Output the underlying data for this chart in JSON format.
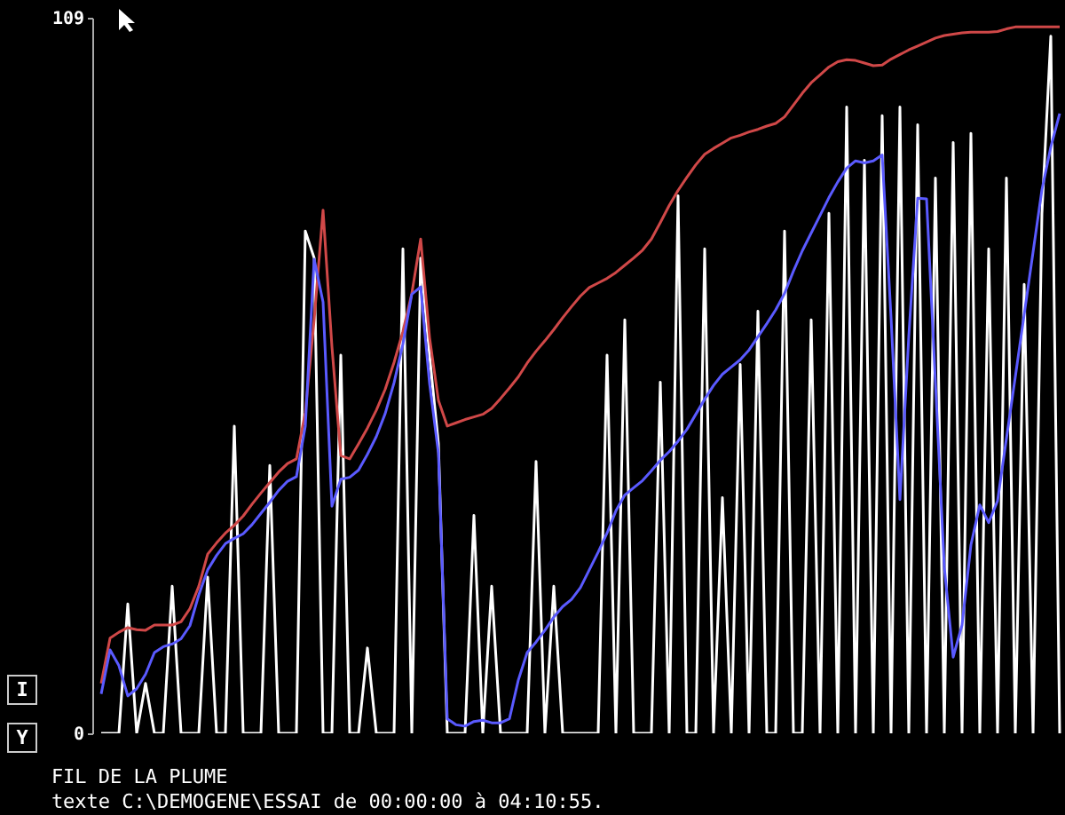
{
  "chart_data": {
    "type": "line",
    "title": "FIL DE LA PLUME",
    "subtitle": "texte C:\\DEMOGENE\\ESSAI de 00:00:00 à 04:10:55.",
    "annotations": [
      "I",
      "Y"
    ],
    "categories": [
      null,
      null,
      null,
      null,
      null,
      null,
      null,
      null,
      null,
      null,
      null,
      null,
      null,
      null,
      null,
      null,
      null,
      null,
      null,
      null,
      null,
      null,
      null,
      null,
      null,
      null,
      null,
      null,
      null,
      null,
      null,
      null,
      null,
      null,
      null,
      null,
      null,
      null,
      null,
      null,
      null,
      null,
      null,
      null,
      null,
      null,
      null,
      null,
      null,
      null,
      null,
      null,
      null,
      null,
      null,
      null,
      null,
      null,
      null,
      null,
      null,
      null,
      null,
      null,
      null,
      null,
      null,
      null,
      null,
      null,
      null,
      null,
      null,
      null,
      null,
      null,
      null,
      null,
      null,
      null,
      null,
      null,
      null,
      null,
      null,
      null,
      null,
      null,
      null,
      null,
      null,
      null,
      null,
      null,
      null,
      null,
      null,
      null,
      null,
      null,
      null,
      null,
      null,
      null,
      null,
      null,
      null,
      null,
      null
    ],
    "ylim": [
      0,
      109
    ],
    "yticks": [
      0,
      109
    ],
    "tick_labels": "y",
    "series": [
      {
        "color": "#ffffff",
        "values": [
          0,
          0,
          0,
          19.7,
          0,
          7.6,
          0,
          0,
          22.4,
          0,
          0,
          0,
          23.8,
          0,
          0,
          46.8,
          0,
          0,
          0,
          40.8,
          0,
          0,
          0,
          76.5,
          72.4,
          0,
          0,
          57.6,
          0,
          0,
          13.0,
          0,
          0,
          0,
          73.8,
          0,
          72.4,
          57.6,
          44.1,
          0,
          0,
          0,
          33.2,
          0,
          22.4,
          0,
          0,
          0,
          0,
          41.4,
          0,
          22.4,
          0,
          0,
          0,
          0,
          0,
          57.6,
          0,
          63.0,
          0,
          0,
          0,
          53.5,
          0,
          81.9,
          0,
          0,
          73.8,
          0,
          35.9,
          0,
          56.2,
          0,
          64.3,
          0,
          0,
          76.5,
          0,
          0,
          63.0,
          0,
          79.2,
          0,
          95.4,
          0,
          87.3,
          0,
          94.1,
          0,
          95.4,
          0,
          92.7,
          0,
          84.6,
          0,
          90.0,
          0,
          91.4,
          0,
          73.8,
          0,
          84.6,
          0,
          68.4,
          0,
          79.2,
          106.2,
          0
        ]
      },
      {
        "color": "#d04848",
        "values": [
          7.6,
          14.5,
          15.4,
          16.1,
          15.8,
          15.7,
          16.5,
          16.5,
          16.5,
          17.0,
          19.0,
          22.4,
          27.3,
          29.0,
          30.5,
          31.7,
          33.1,
          34.9,
          36.6,
          38.2,
          39.8,
          41.1,
          41.8,
          48.9,
          63.0,
          79.7,
          58.9,
          42.3,
          41.8,
          44.1,
          46.5,
          49.2,
          52.4,
          56.5,
          61.2,
          67.0,
          75.3,
          60.3,
          50.7,
          46.8,
          47.3,
          47.8,
          48.2,
          48.6,
          49.5,
          51.0,
          52.6,
          54.3,
          56.4,
          58.2,
          59.8,
          61.5,
          63.3,
          65.0,
          66.6,
          67.9,
          68.6,
          69.3,
          70.2,
          71.3,
          72.4,
          73.6,
          75.3,
          77.8,
          80.4,
          82.7,
          84.7,
          86.6,
          88.2,
          89.1,
          89.9,
          90.7,
          91.1,
          91.6,
          92.0,
          92.5,
          92.9,
          93.9,
          95.7,
          97.5,
          99.1,
          100.3,
          101.5,
          102.3,
          102.6,
          102.5,
          102.1,
          101.7,
          101.8,
          102.7,
          103.4,
          104.1,
          104.7,
          105.3,
          105.9,
          106.3,
          106.5,
          106.7,
          106.8,
          106.8,
          106.8,
          106.9,
          107.3,
          107.6,
          107.6,
          107.6,
          107.6,
          107.6,
          107.6
        ]
      },
      {
        "color": "#5a5aff",
        "values": [
          6.0,
          12.7,
          10.3,
          5.7,
          6.8,
          9.0,
          12.3,
          13.2,
          13.6,
          14.4,
          16.4,
          21.1,
          24.9,
          27.1,
          28.9,
          29.7,
          30.4,
          31.8,
          33.5,
          35.2,
          37.0,
          38.4,
          39.1,
          46.8,
          72.2,
          65.7,
          34.6,
          38.7,
          39.0,
          40.1,
          42.5,
          45.2,
          48.7,
          53.4,
          59.3,
          66.9,
          68.0,
          53.3,
          42.7,
          2.2,
          1.3,
          1.1,
          1.8,
          2.0,
          1.6,
          1.6,
          2.2,
          8.1,
          12.3,
          13.9,
          15.7,
          17.7,
          19.3,
          20.4,
          22.2,
          24.9,
          27.6,
          30.5,
          33.9,
          36.3,
          37.4,
          38.5,
          40.0,
          41.6,
          42.9,
          44.5,
          46.3,
          48.6,
          50.9,
          53.0,
          54.7,
          55.8,
          56.9,
          58.4,
          60.4,
          62.4,
          64.5,
          67.0,
          70.4,
          73.5,
          76.2,
          78.9,
          81.6,
          84.0,
          86.1,
          87.2,
          86.9,
          87.2,
          88.1,
          63.3,
          35.6,
          60.5,
          81.5,
          81.4,
          53.5,
          25.3,
          11.6,
          16.5,
          28.7,
          34.8,
          32.1,
          35.4,
          44.9,
          54.3,
          63.8,
          73.3,
          82.8,
          89.3,
          94.4
        ]
      }
    ]
  }
}
